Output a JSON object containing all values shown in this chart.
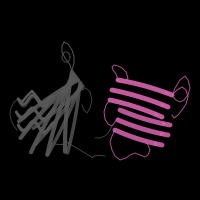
{
  "background_color": "#000000",
  "fig_width": 2.0,
  "fig_height": 2.0,
  "dpi": 100,
  "gray_color": "#585858",
  "pink_color": "#d060a8",
  "pink_loop_color": "#c050a0"
}
